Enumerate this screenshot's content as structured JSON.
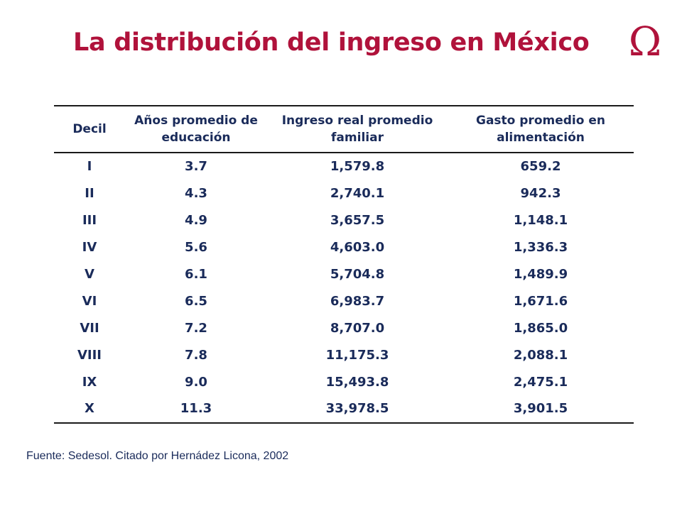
{
  "title": "La distribución del ingreso en México",
  "logo_glyph": "Ω",
  "table": {
    "headers": [
      "Decil",
      "Años promedio de educación",
      "Ingreso real promedio familiar",
      "Gasto promedio en alimentación"
    ],
    "rows": [
      [
        "I",
        "3.7",
        "1,579.8",
        "659.2"
      ],
      [
        "II",
        "4.3",
        "2,740.1",
        "942.3"
      ],
      [
        "III",
        "4.9",
        "3,657.5",
        "1,148.1"
      ],
      [
        "IV",
        "5.6",
        "4,603.0",
        "1,336.3"
      ],
      [
        "V",
        "6.1",
        "5,704.8",
        "1,489.9"
      ],
      [
        "VI",
        "6.5",
        "6,983.7",
        "1,671.6"
      ],
      [
        "VII",
        "7.2",
        "8,707.0",
        "1,865.0"
      ],
      [
        "VIII",
        "7.8",
        "11,175.3",
        "2,088.1"
      ],
      [
        "IX",
        "9.0",
        "15,493.8",
        "2,475.1"
      ],
      [
        "X",
        "11.3",
        "33,978.5",
        "3,901.5"
      ]
    ]
  },
  "source": "Fuente: Sedesol. Citado por Hernádez Licona, 2002",
  "colors": {
    "title": "#b0123b",
    "text": "#1a2b5a"
  }
}
